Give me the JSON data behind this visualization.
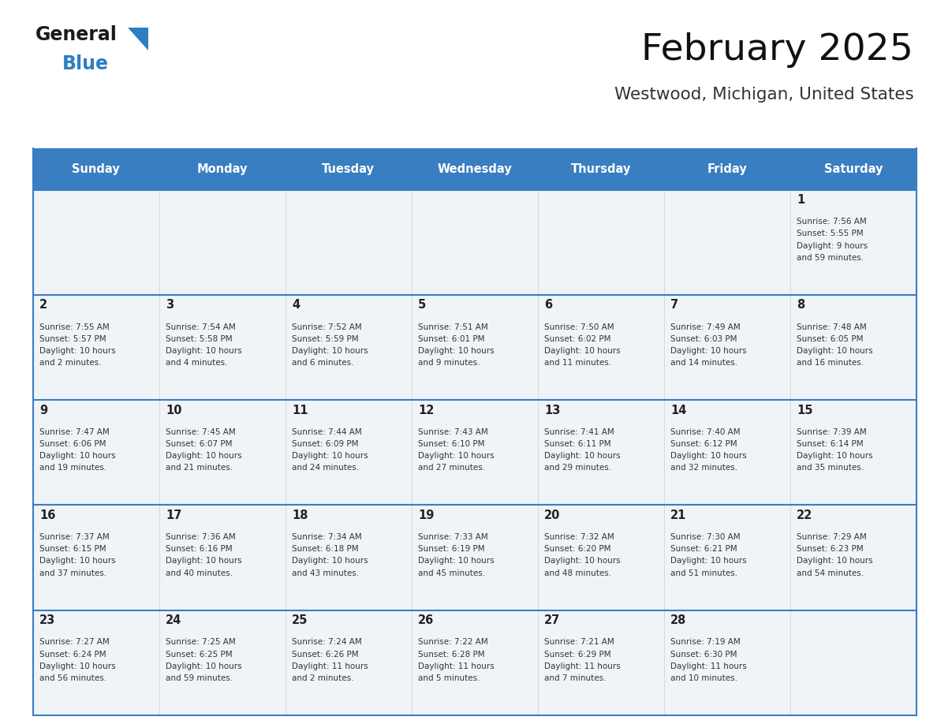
{
  "title": "February 2025",
  "subtitle": "Westwood, Michigan, United States",
  "header_bg": "#3A7EC2",
  "header_text": "#FFFFFF",
  "cell_bg": "#F0F4F8",
  "border_color": "#3A7EC2",
  "text_color": "#333333",
  "day_number_color": "#222222",
  "day_headers": [
    "Sunday",
    "Monday",
    "Tuesday",
    "Wednesday",
    "Thursday",
    "Friday",
    "Saturday"
  ],
  "days_data": [
    {
      "day": 1,
      "row": 0,
      "col": 6,
      "sunrise": "7:56 AM",
      "sunset": "5:55 PM",
      "daylight_h": "9 hours",
      "daylight_m": "and 59 minutes."
    },
    {
      "day": 2,
      "row": 1,
      "col": 0,
      "sunrise": "7:55 AM",
      "sunset": "5:57 PM",
      "daylight_h": "10 hours",
      "daylight_m": "and 2 minutes."
    },
    {
      "day": 3,
      "row": 1,
      "col": 1,
      "sunrise": "7:54 AM",
      "sunset": "5:58 PM",
      "daylight_h": "10 hours",
      "daylight_m": "and 4 minutes."
    },
    {
      "day": 4,
      "row": 1,
      "col": 2,
      "sunrise": "7:52 AM",
      "sunset": "5:59 PM",
      "daylight_h": "10 hours",
      "daylight_m": "and 6 minutes."
    },
    {
      "day": 5,
      "row": 1,
      "col": 3,
      "sunrise": "7:51 AM",
      "sunset": "6:01 PM",
      "daylight_h": "10 hours",
      "daylight_m": "and 9 minutes."
    },
    {
      "day": 6,
      "row": 1,
      "col": 4,
      "sunrise": "7:50 AM",
      "sunset": "6:02 PM",
      "daylight_h": "10 hours",
      "daylight_m": "and 11 minutes."
    },
    {
      "day": 7,
      "row": 1,
      "col": 5,
      "sunrise": "7:49 AM",
      "sunset": "6:03 PM",
      "daylight_h": "10 hours",
      "daylight_m": "and 14 minutes."
    },
    {
      "day": 8,
      "row": 1,
      "col": 6,
      "sunrise": "7:48 AM",
      "sunset": "6:05 PM",
      "daylight_h": "10 hours",
      "daylight_m": "and 16 minutes."
    },
    {
      "day": 9,
      "row": 2,
      "col": 0,
      "sunrise": "7:47 AM",
      "sunset": "6:06 PM",
      "daylight_h": "10 hours",
      "daylight_m": "and 19 minutes."
    },
    {
      "day": 10,
      "row": 2,
      "col": 1,
      "sunrise": "7:45 AM",
      "sunset": "6:07 PM",
      "daylight_h": "10 hours",
      "daylight_m": "and 21 minutes."
    },
    {
      "day": 11,
      "row": 2,
      "col": 2,
      "sunrise": "7:44 AM",
      "sunset": "6:09 PM",
      "daylight_h": "10 hours",
      "daylight_m": "and 24 minutes."
    },
    {
      "day": 12,
      "row": 2,
      "col": 3,
      "sunrise": "7:43 AM",
      "sunset": "6:10 PM",
      "daylight_h": "10 hours",
      "daylight_m": "and 27 minutes."
    },
    {
      "day": 13,
      "row": 2,
      "col": 4,
      "sunrise": "7:41 AM",
      "sunset": "6:11 PM",
      "daylight_h": "10 hours",
      "daylight_m": "and 29 minutes."
    },
    {
      "day": 14,
      "row": 2,
      "col": 5,
      "sunrise": "7:40 AM",
      "sunset": "6:12 PM",
      "daylight_h": "10 hours",
      "daylight_m": "and 32 minutes."
    },
    {
      "day": 15,
      "row": 2,
      "col": 6,
      "sunrise": "7:39 AM",
      "sunset": "6:14 PM",
      "daylight_h": "10 hours",
      "daylight_m": "and 35 minutes."
    },
    {
      "day": 16,
      "row": 3,
      "col": 0,
      "sunrise": "7:37 AM",
      "sunset": "6:15 PM",
      "daylight_h": "10 hours",
      "daylight_m": "and 37 minutes."
    },
    {
      "day": 17,
      "row": 3,
      "col": 1,
      "sunrise": "7:36 AM",
      "sunset": "6:16 PM",
      "daylight_h": "10 hours",
      "daylight_m": "and 40 minutes."
    },
    {
      "day": 18,
      "row": 3,
      "col": 2,
      "sunrise": "7:34 AM",
      "sunset": "6:18 PM",
      "daylight_h": "10 hours",
      "daylight_m": "and 43 minutes."
    },
    {
      "day": 19,
      "row": 3,
      "col": 3,
      "sunrise": "7:33 AM",
      "sunset": "6:19 PM",
      "daylight_h": "10 hours",
      "daylight_m": "and 45 minutes."
    },
    {
      "day": 20,
      "row": 3,
      "col": 4,
      "sunrise": "7:32 AM",
      "sunset": "6:20 PM",
      "daylight_h": "10 hours",
      "daylight_m": "and 48 minutes."
    },
    {
      "day": 21,
      "row": 3,
      "col": 5,
      "sunrise": "7:30 AM",
      "sunset": "6:21 PM",
      "daylight_h": "10 hours",
      "daylight_m": "and 51 minutes."
    },
    {
      "day": 22,
      "row": 3,
      "col": 6,
      "sunrise": "7:29 AM",
      "sunset": "6:23 PM",
      "daylight_h": "10 hours",
      "daylight_m": "and 54 minutes."
    },
    {
      "day": 23,
      "row": 4,
      "col": 0,
      "sunrise": "7:27 AM",
      "sunset": "6:24 PM",
      "daylight_h": "10 hours",
      "daylight_m": "and 56 minutes."
    },
    {
      "day": 24,
      "row": 4,
      "col": 1,
      "sunrise": "7:25 AM",
      "sunset": "6:25 PM",
      "daylight_h": "10 hours",
      "daylight_m": "and 59 minutes."
    },
    {
      "day": 25,
      "row": 4,
      "col": 2,
      "sunrise": "7:24 AM",
      "sunset": "6:26 PM",
      "daylight_h": "11 hours",
      "daylight_m": "and 2 minutes."
    },
    {
      "day": 26,
      "row": 4,
      "col": 3,
      "sunrise": "7:22 AM",
      "sunset": "6:28 PM",
      "daylight_h": "11 hours",
      "daylight_m": "and 5 minutes."
    },
    {
      "day": 27,
      "row": 4,
      "col": 4,
      "sunrise": "7:21 AM",
      "sunset": "6:29 PM",
      "daylight_h": "11 hours",
      "daylight_m": "and 7 minutes."
    },
    {
      "day": 28,
      "row": 4,
      "col": 5,
      "sunrise": "7:19 AM",
      "sunset": "6:30 PM",
      "daylight_h": "11 hours",
      "daylight_m": "and 10 minutes."
    }
  ]
}
